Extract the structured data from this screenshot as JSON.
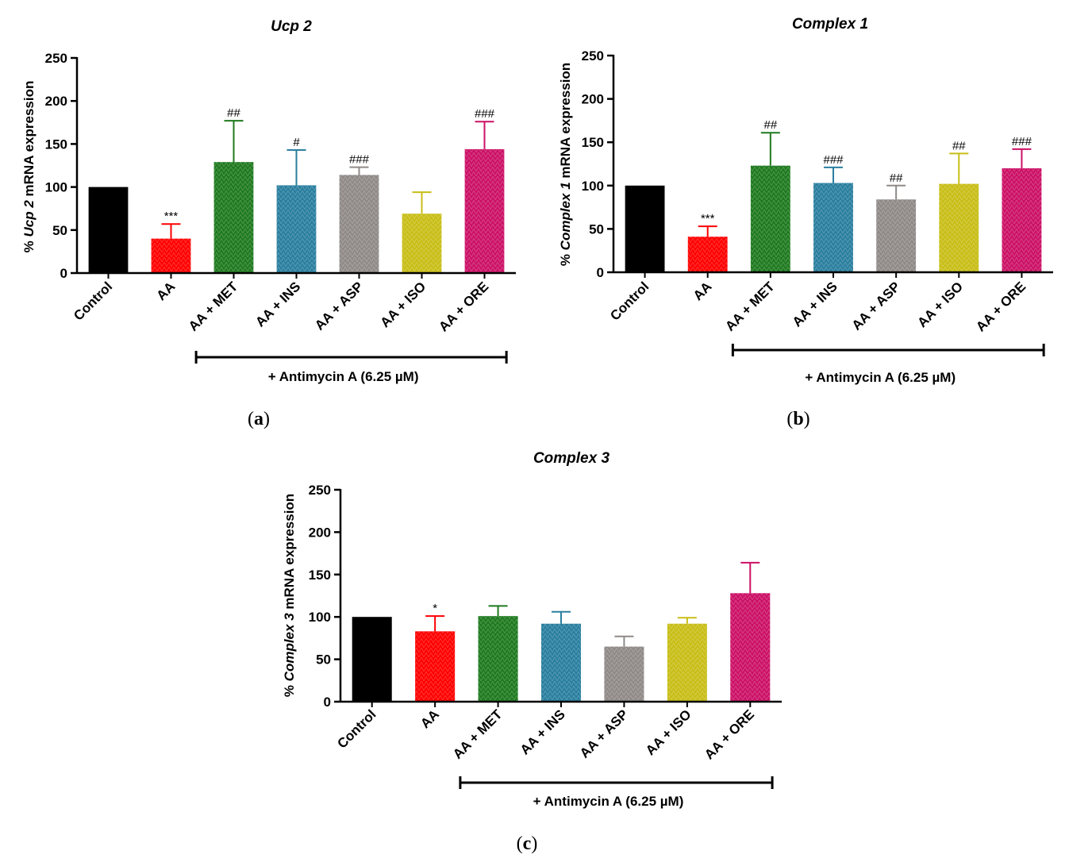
{
  "colors": {
    "Control": "#000000",
    "AA": "#ff0000",
    "AA + MET": "#1f7a1f",
    "AA + INS": "#2a7f9f",
    "AA + ASP": "#8f8a88",
    "AA + ISO": "#c8be17",
    "AA + ORE": "#cc1166"
  },
  "chart_data": [
    {
      "panel": "a",
      "panel_label": "a",
      "type": "bar",
      "title": "Ucp 2",
      "ylabel_prefix": "% ",
      "ylabel_italic": "Ucp 2",
      "ylabel_suffix": " mRNA expression",
      "ylim": [
        0,
        250
      ],
      "yticks": [
        0,
        50,
        100,
        150,
        200,
        250
      ],
      "categories": [
        "Control",
        "AA",
        "AA + MET",
        "AA + INS",
        "AA + ASP",
        "AA + ISO",
        "AA + ORE"
      ],
      "values": [
        100,
        40,
        129,
        102,
        114,
        69,
        144
      ],
      "errors": [
        0,
        17,
        48,
        41,
        9,
        25,
        32
      ],
      "annotations": [
        "",
        "***",
        "##",
        "#",
        "###",
        "",
        "###"
      ],
      "bracket_label": "+ Antimycin A (6.25 µM)"
    },
    {
      "panel": "b",
      "panel_label": "b",
      "type": "bar",
      "title": "Complex 1",
      "ylabel_prefix": "% ",
      "ylabel_italic": "Complex 1",
      "ylabel_suffix": " mRNA expression",
      "ylim": [
        0,
        250
      ],
      "yticks": [
        0,
        50,
        100,
        150,
        200,
        250
      ],
      "categories": [
        "Control",
        "AA",
        "AA + MET",
        "AA + INS",
        "AA + ASP",
        "AA + ISO",
        "AA + ORE"
      ],
      "values": [
        100,
        41,
        123,
        103,
        84,
        102,
        120
      ],
      "errors": [
        0,
        12,
        38,
        18,
        16,
        35,
        22
      ],
      "annotations": [
        "",
        "***",
        "##",
        "###",
        "##",
        "##",
        "###"
      ],
      "bracket_label": "+ Antimycin A (6.25 µM)"
    },
    {
      "panel": "c",
      "panel_label": "c",
      "type": "bar",
      "title": "Complex 3",
      "ylabel_prefix": "% ",
      "ylabel_italic": "Complex 3",
      "ylabel_suffix": " mRNA expression",
      "ylim": [
        0,
        250
      ],
      "yticks": [
        0,
        50,
        100,
        150,
        200,
        250
      ],
      "categories": [
        "Control",
        "AA",
        "AA + MET",
        "AA + INS",
        "AA + ASP",
        "AA + ISO",
        "AA + ORE"
      ],
      "values": [
        100,
        83,
        101,
        92,
        65,
        92,
        128
      ],
      "errors": [
        0,
        18,
        12,
        14,
        12,
        7,
        36
      ],
      "annotations": [
        "",
        "*",
        "",
        "",
        "",
        "",
        ""
      ],
      "bracket_label": "+ Antimycin A (6.25 µM)"
    }
  ]
}
